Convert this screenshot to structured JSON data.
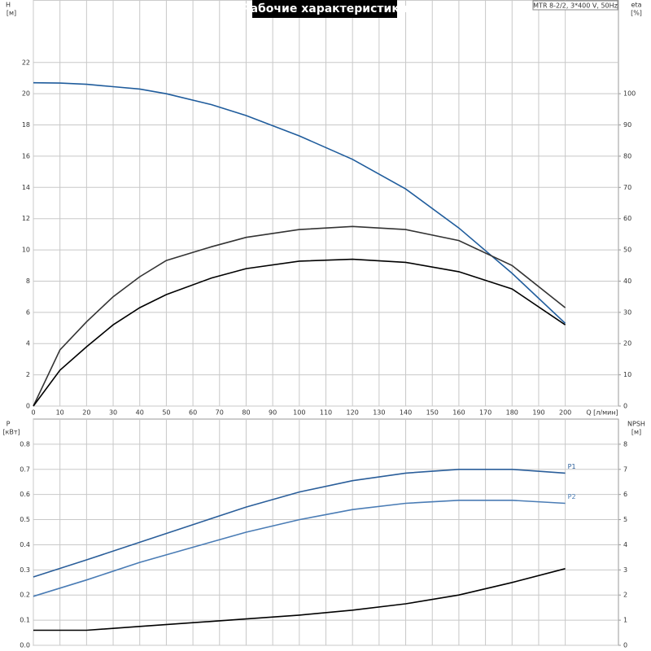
{
  "chart_data": [
    {
      "type": "line",
      "title": "Рабочие характеристики",
      "subtitle": "MTR 8-2/2, 3*400 V, 50Hz",
      "y_label": "H",
      "y_unit": "[м]",
      "y2_label": "eta",
      "y2_unit": "[%]",
      "x_label": "Q [л/мин]",
      "x": [
        0,
        10,
        20,
        30,
        40,
        50,
        67,
        80,
        100,
        120,
        140,
        160,
        180,
        200
      ],
      "xlim": [
        0,
        220
      ],
      "xticks": [
        0,
        10,
        20,
        30,
        40,
        50,
        60,
        70,
        80,
        90,
        100,
        110,
        120,
        130,
        140,
        150,
        160,
        170,
        180,
        190,
        200
      ],
      "xtick_labels": true,
      "ylim": [
        0,
        26
      ],
      "yticks": [
        0,
        2,
        4,
        6,
        8,
        10,
        12,
        14,
        16,
        18,
        20,
        22
      ],
      "y2lim": [
        0,
        130
      ],
      "y2ticks": [
        0,
        10,
        20,
        30,
        40,
        50,
        60,
        70,
        80,
        90,
        100
      ],
      "grid": true,
      "series": [
        {
          "color": "#1f5c9c",
          "values": [
            20.7,
            20.68,
            20.6,
            20.45,
            20.3,
            20.0,
            19.3,
            18.6,
            17.3,
            15.8,
            13.9,
            11.4,
            8.5,
            5.3
          ]
        },
        {
          "color": "#333333",
          "axis": "y2",
          "values": [
            0,
            18,
            27,
            35,
            41.4,
            46.6,
            51,
            54,
            56.5,
            57.5,
            56.5,
            53,
            45,
            31.5
          ]
        },
        {
          "color": "#000000",
          "axis": "y2",
          "values": [
            0,
            11.5,
            19,
            26,
            31.5,
            35.7,
            41,
            44,
            46.4,
            47,
            46,
            43,
            37.5,
            26
          ]
        }
      ]
    },
    {
      "type": "line",
      "y_label": "P",
      "y_unit": "[кВт]",
      "y2_label": "NPSH",
      "y2_unit": "[м]",
      "x": [
        0,
        20,
        40,
        60,
        80,
        100,
        120,
        140,
        160,
        180,
        200
      ],
      "xlim": [
        0,
        220
      ],
      "xticks": [
        0,
        10,
        20,
        30,
        40,
        50,
        60,
        70,
        80,
        90,
        100,
        110,
        120,
        130,
        140,
        150,
        160,
        170,
        180,
        190,
        200
      ],
      "xtick_labels": false,
      "ylim": [
        0,
        0.9
      ],
      "yticks": [
        {
          "value": 0,
          "label": "0.0"
        },
        0.1,
        0.2,
        0.3,
        0.4,
        0.5,
        0.6,
        0.7,
        0.8
      ],
      "y2lim": [
        0,
        9
      ],
      "y2ticks": [
        0,
        1,
        2,
        3,
        4,
        5,
        6,
        7,
        8
      ],
      "grid": true,
      "series": [
        {
          "name": "P1",
          "color": "#2a5e9a",
          "values": [
            0.272,
            0.34,
            0.41,
            0.48,
            0.55,
            0.61,
            0.655,
            0.685,
            0.7,
            0.7,
            0.685
          ]
        },
        {
          "name": "P2",
          "color": "#4a7cb5",
          "values": [
            0.195,
            0.26,
            0.33,
            0.39,
            0.45,
            0.5,
            0.54,
            0.565,
            0.577,
            0.577,
            0.565
          ]
        },
        {
          "color": "#000000",
          "axis": "y2",
          "values": [
            0.6,
            0.6,
            0.75,
            0.9,
            1.05,
            1.2,
            1.4,
            1.65,
            2.0,
            2.5,
            3.05
          ]
        }
      ]
    }
  ]
}
